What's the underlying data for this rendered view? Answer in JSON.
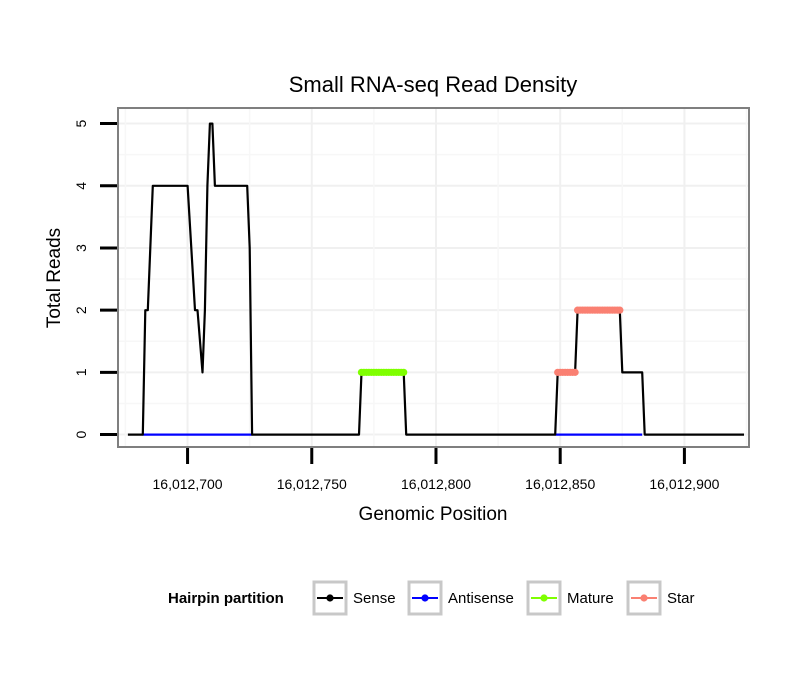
{
  "chart_data": {
    "type": "line",
    "title": "Small RNA-seq Read Density",
    "xlabel": "Genomic Position",
    "ylabel": "Total Reads",
    "xlim": [
      16012672,
      16012926
    ],
    "ylim": [
      -0.2,
      5.25
    ],
    "x_ticks": [
      16012700,
      16012750,
      16012800,
      16012850,
      16012900
    ],
    "x_tick_labels": [
      "16,012,700",
      "16,012,750",
      "16,012,800",
      "16,012,850",
      "16,012,900"
    ],
    "y_ticks": [
      0,
      1,
      2,
      3,
      4,
      5
    ],
    "y_tick_labels": [
      "0",
      "1",
      "2",
      "3",
      "4",
      "5"
    ],
    "grid": true,
    "legend": {
      "title": "Hairpin partition",
      "position": "bottom",
      "entries": [
        {
          "name": "Sense",
          "color": "#000000"
        },
        {
          "name": "Antisense",
          "color": "#0000ff"
        },
        {
          "name": "Mature",
          "color": "#7fff00"
        },
        {
          "name": "Star",
          "color": "#fa8072"
        }
      ]
    },
    "series": [
      {
        "name": "Sense",
        "color": "#000000",
        "mode": "line",
        "x": [
          16012676,
          16012682,
          16012683,
          16012684,
          16012686,
          16012700,
          16012703,
          16012704,
          16012706,
          16012707,
          16012708,
          16012709,
          16012710,
          16012711,
          16012723,
          16012724,
          16012725,
          16012726,
          16012769,
          16012770,
          16012787,
          16012788,
          16012848,
          16012849,
          16012856,
          16012857,
          16012874,
          16012875,
          16012883,
          16012884,
          16012924
        ],
        "values": [
          0,
          0,
          2,
          2,
          4,
          4,
          2,
          2,
          1,
          2,
          4,
          5,
          5,
          4,
          4,
          4,
          3,
          0,
          0,
          1,
          1,
          0,
          0,
          1,
          1,
          2,
          2,
          1,
          1,
          0,
          0
        ]
      },
      {
        "name": "Antisense",
        "color": "#0000ff",
        "mode": "line",
        "x": [
          16012682,
          16012726
        ],
        "values": [
          0,
          0
        ]
      },
      {
        "name": "Antisense",
        "color": "#0000ff",
        "mode": "line",
        "x": [
          16012848,
          16012883
        ],
        "values": [
          0,
          0
        ]
      },
      {
        "name": "Mature",
        "color": "#7fff00",
        "mode": "points",
        "x": [
          16012770,
          16012771,
          16012772,
          16012773,
          16012774,
          16012775,
          16012776,
          16012777,
          16012778,
          16012779,
          16012780,
          16012781,
          16012782,
          16012783,
          16012784,
          16012785,
          16012786,
          16012787
        ],
        "values": [
          1,
          1,
          1,
          1,
          1,
          1,
          1,
          1,
          1,
          1,
          1,
          1,
          1,
          1,
          1,
          1,
          1,
          1
        ]
      },
      {
        "name": "Star",
        "color": "#fa8072",
        "mode": "points",
        "x": [
          16012849,
          16012850,
          16012851,
          16012852,
          16012853,
          16012854,
          16012855,
          16012856,
          16012857,
          16012858,
          16012859,
          16012860,
          16012861,
          16012862,
          16012863,
          16012864,
          16012865,
          16012866,
          16012867,
          16012868,
          16012869,
          16012870,
          16012871,
          16012872,
          16012873,
          16012874
        ],
        "values": [
          1,
          1,
          1,
          1,
          1,
          1,
          1,
          1,
          2,
          2,
          2,
          2,
          2,
          2,
          2,
          2,
          2,
          2,
          2,
          2,
          2,
          2,
          2,
          2,
          2,
          2
        ]
      }
    ]
  }
}
